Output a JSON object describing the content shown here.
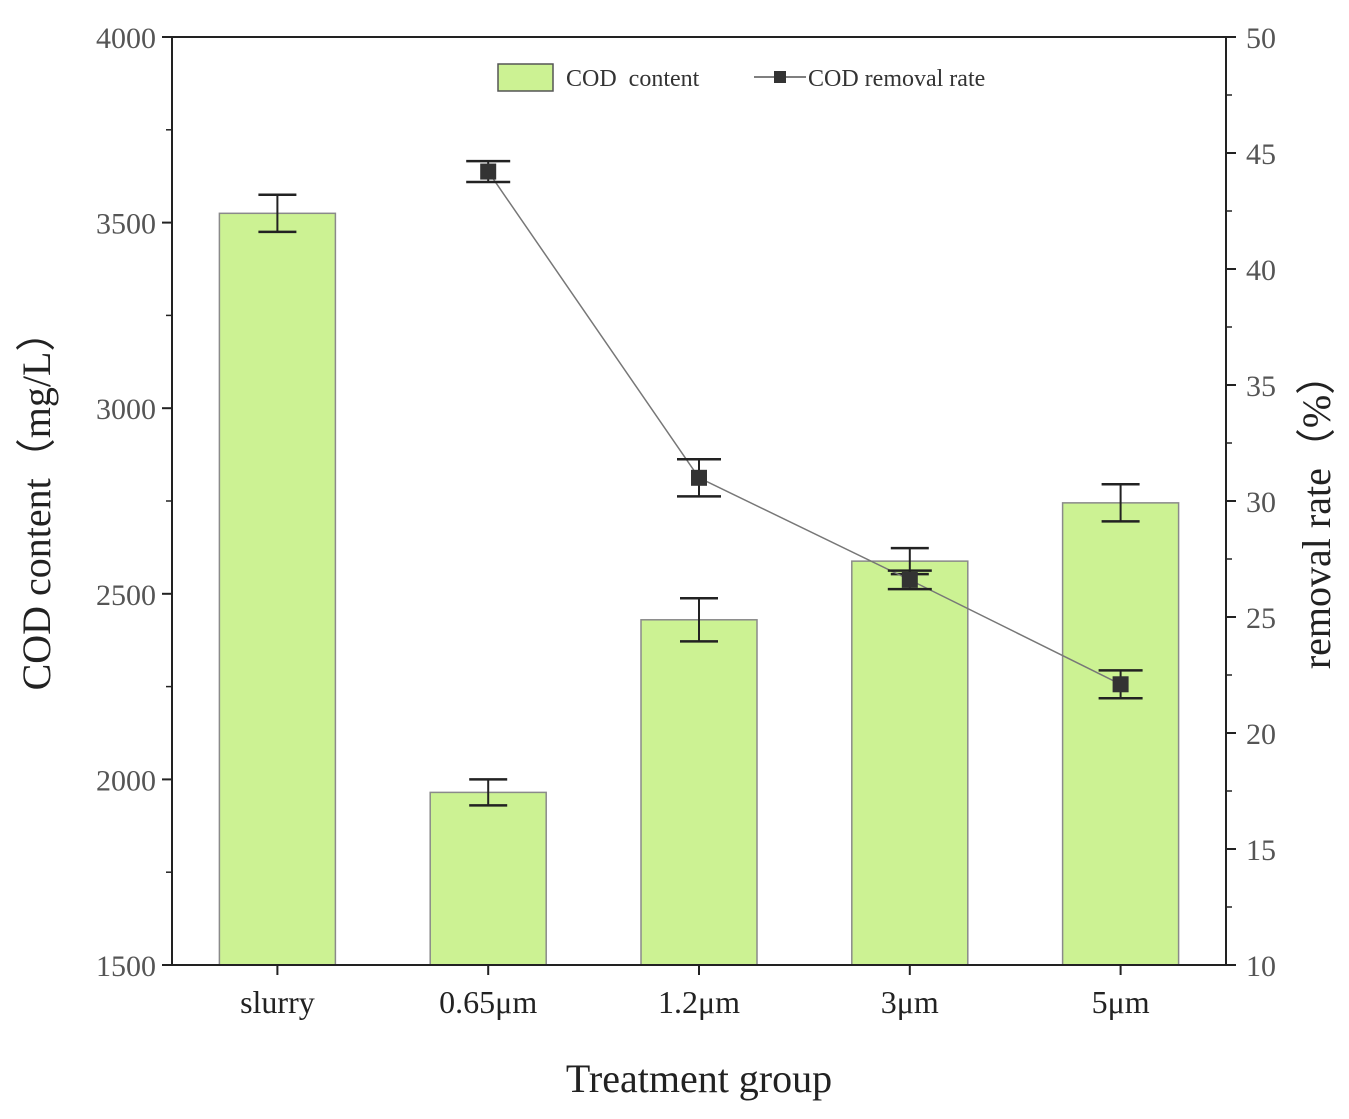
{
  "chart_data": {
    "type": "bar",
    "categories": [
      "slurry",
      "0.65μm",
      "1.2μm",
      "3μm",
      "5μm"
    ],
    "xlabel": "Treatment group",
    "ylabel": "COD content（mg/L）",
    "y2label": "removal rate（%）",
    "ylim": [
      1500,
      4000
    ],
    "y2lim": [
      10,
      50
    ],
    "yticks": [
      "1500",
      "2000",
      "2500",
      "3000",
      "3500",
      "4000"
    ],
    "y2ticks": [
      "10",
      "15",
      "20",
      "25",
      "30",
      "35",
      "40",
      "45",
      "50"
    ],
    "legend_position": "top",
    "series": [
      {
        "name": "COD  content",
        "type": "bar",
        "axis": "left",
        "color": "#ccf293",
        "values": [
          3525,
          1965,
          2430,
          2588,
          2745
        ],
        "errors": [
          50,
          35,
          58,
          35,
          50
        ]
      },
      {
        "name": "COD removal rate",
        "type": "line",
        "axis": "right",
        "color": "#333333",
        "values": [
          null,
          44.2,
          31.0,
          26.6,
          22.1
        ],
        "errors": [
          null,
          0.45,
          0.8,
          0.4,
          0.6
        ]
      }
    ]
  }
}
